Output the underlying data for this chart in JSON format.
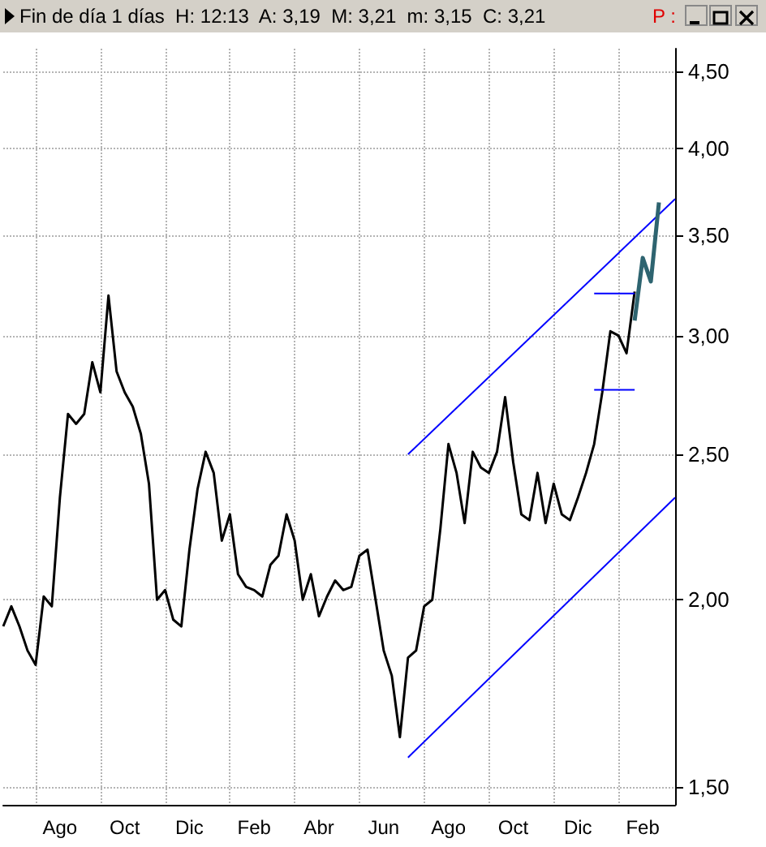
{
  "chart_data": {
    "type": "line",
    "title": "Fin de día 1 días  H: 12:13  A: 3,19  M: 3,21  m: 3,15  C: 3,21",
    "annotations": [
      "P :"
    ],
    "categories": [
      null,
      null,
      null,
      null,
      null,
      null,
      null,
      "Ago",
      null,
      null,
      null,
      null,
      null,
      null,
      null,
      "Oct",
      null,
      null,
      null,
      null,
      null,
      null,
      null,
      "Dic",
      null,
      null,
      null,
      null,
      null,
      null,
      null,
      "Feb",
      null,
      null,
      null,
      null,
      null,
      null,
      null,
      "Abr",
      null,
      null,
      null,
      null,
      null,
      null,
      null,
      "Jun",
      null,
      null,
      null,
      null,
      null,
      null,
      null,
      "Ago",
      null,
      null,
      null,
      null,
      null,
      null,
      null,
      "Oct",
      null,
      null,
      null,
      null,
      null,
      null,
      null,
      "Dic",
      null,
      null,
      null,
      null,
      null,
      null,
      null,
      "Feb",
      null,
      null,
      null,
      null
    ],
    "series": [
      {
        "color": "#000000",
        "values": [
          1.92,
          1.98,
          1.92,
          1.85,
          1.81,
          2.01,
          1.98,
          2.34,
          2.66,
          2.62,
          2.66,
          2.88,
          2.75,
          3.19,
          2.84,
          2.75,
          2.69,
          2.58,
          2.39,
          2.0,
          2.03,
          1.94,
          1.92,
          2.16,
          2.37,
          2.51,
          2.43,
          2.19,
          2.28,
          2.08,
          2.04,
          2.03,
          2.01,
          2.11,
          2.14,
          2.28,
          2.19,
          2.0,
          2.08,
          1.95,
          2.01,
          2.06,
          2.03,
          2.04,
          2.14,
          2.16,
          2.0,
          1.85,
          1.78,
          1.62,
          1.83,
          1.85,
          1.98,
          2.0,
          2.23,
          2.54,
          2.43,
          2.25,
          2.51,
          2.45,
          2.43,
          2.51,
          2.73,
          2.47,
          2.28,
          2.26,
          2.43,
          2.25,
          2.39,
          2.28,
          2.26,
          2.34,
          2.43,
          2.54,
          2.75,
          3.02,
          3.0,
          2.92,
          3.21,
          null,
          null,
          null,
          null,
          null
        ]
      },
      {
        "color": "#0000ff",
        "values": [
          null,
          null,
          null,
          null,
          null,
          null,
          null,
          null,
          null,
          null,
          null,
          null,
          null,
          null,
          null,
          null,
          null,
          null,
          null,
          null,
          null,
          null,
          null,
          null,
          null,
          null,
          null,
          null,
          null,
          null,
          null,
          null,
          null,
          null,
          null,
          null,
          null,
          null,
          null,
          null,
          null,
          null,
          null,
          null,
          null,
          null,
          null,
          null,
          null,
          null,
          2.5,
          null,
          null,
          null,
          null,
          null,
          null,
          null,
          null,
          null,
          null,
          null,
          null,
          null,
          null,
          null,
          null,
          null,
          null,
          null,
          null,
          null,
          null,
          null,
          null,
          null,
          null,
          null,
          null,
          null,
          null,
          null,
          null,
          3.7
        ]
      },
      {
        "color": "#0000ff",
        "values": [
          null,
          null,
          null,
          null,
          null,
          null,
          null,
          null,
          null,
          null,
          null,
          null,
          null,
          null,
          null,
          null,
          null,
          null,
          null,
          null,
          null,
          null,
          null,
          null,
          null,
          null,
          null,
          null,
          null,
          null,
          null,
          null,
          null,
          null,
          null,
          null,
          null,
          null,
          null,
          null,
          null,
          null,
          null,
          null,
          null,
          null,
          null,
          null,
          null,
          null,
          1.57,
          null,
          null,
          null,
          null,
          null,
          null,
          null,
          null,
          null,
          null,
          null,
          null,
          null,
          null,
          null,
          null,
          null,
          null,
          null,
          null,
          null,
          null,
          null,
          null,
          null,
          null,
          null,
          null,
          null,
          null,
          null,
          null,
          2.34
        ]
      },
      {
        "color": "#0000ff",
        "values": [
          null,
          null,
          null,
          null,
          null,
          null,
          null,
          null,
          null,
          null,
          null,
          null,
          null,
          null,
          null,
          null,
          null,
          null,
          null,
          null,
          null,
          null,
          null,
          null,
          null,
          null,
          null,
          null,
          null,
          null,
          null,
          null,
          null,
          null,
          null,
          null,
          null,
          null,
          null,
          null,
          null,
          null,
          null,
          null,
          null,
          null,
          null,
          null,
          null,
          null,
          null,
          null,
          null,
          null,
          null,
          null,
          null,
          null,
          null,
          null,
          null,
          null,
          null,
          null,
          null,
          null,
          null,
          null,
          null,
          null,
          null,
          null,
          null,
          3.2,
          null,
          null,
          null,
          null,
          3.2,
          null,
          null,
          null,
          null,
          null
        ]
      },
      {
        "color": "#0000ff",
        "values": [
          null,
          null,
          null,
          null,
          null,
          null,
          null,
          null,
          null,
          null,
          null,
          null,
          null,
          null,
          null,
          null,
          null,
          null,
          null,
          null,
          null,
          null,
          null,
          null,
          null,
          null,
          null,
          null,
          null,
          null,
          null,
          null,
          null,
          null,
          null,
          null,
          null,
          null,
          null,
          null,
          null,
          null,
          null,
          null,
          null,
          null,
          null,
          null,
          null,
          null,
          null,
          null,
          null,
          null,
          null,
          null,
          null,
          null,
          null,
          null,
          null,
          null,
          null,
          null,
          null,
          null,
          null,
          null,
          null,
          null,
          null,
          null,
          null,
          2.76,
          null,
          null,
          null,
          null,
          2.76,
          null,
          null,
          null,
          null,
          null
        ]
      },
      {
        "color": "#2e6470",
        "values": [
          null,
          null,
          null,
          null,
          null,
          null,
          null,
          null,
          null,
          null,
          null,
          null,
          null,
          null,
          null,
          null,
          null,
          null,
          null,
          null,
          null,
          null,
          null,
          null,
          null,
          null,
          null,
          null,
          null,
          null,
          null,
          null,
          null,
          null,
          null,
          null,
          null,
          null,
          null,
          null,
          null,
          null,
          null,
          null,
          null,
          null,
          null,
          null,
          null,
          null,
          null,
          null,
          null,
          null,
          null,
          null,
          null,
          null,
          null,
          null,
          null,
          null,
          null,
          null,
          null,
          null,
          null,
          null,
          null,
          null,
          null,
          null,
          null,
          null,
          null,
          null,
          null,
          null,
          3.07,
          3.38,
          3.26,
          3.68,
          null,
          null
        ]
      }
    ],
    "log": "y",
    "ylim": [
      1.46,
      4.66
    ],
    "yticks": [
      {
        "value": 1.5,
        "label": "1,50"
      },
      {
        "value": 2,
        "label": "2,00"
      },
      {
        "value": 2.5,
        "label": "2,50"
      },
      {
        "value": 3,
        "label": "3,00"
      },
      {
        "value": 3.5,
        "label": "3,50"
      },
      {
        "value": 4,
        "label": "4,00"
      },
      {
        "value": 4.5,
        "label": "4,50"
      }
    ],
    "grid": true,
    "marker": "none",
    "line_style": "solid"
  }
}
